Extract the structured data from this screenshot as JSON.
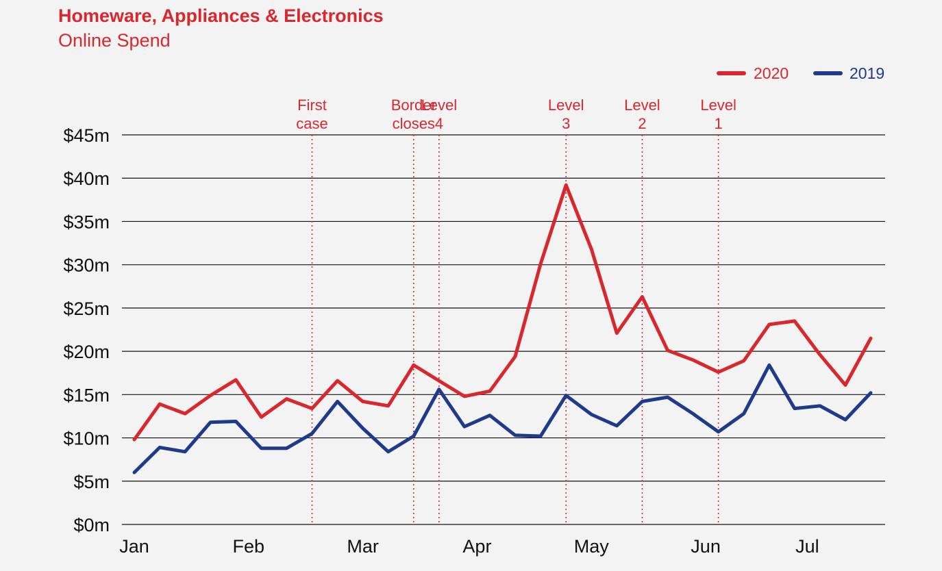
{
  "chart_data": {
    "type": "line",
    "title": "Homeware, Appliances & Electronics",
    "subtitle": "Online Spend",
    "ylim": [
      0,
      45
    ],
    "yticks": [
      0,
      5,
      10,
      15,
      20,
      25,
      30,
      35,
      40,
      45
    ],
    "ytick_labels": [
      "$0m",
      "$5m",
      "$10m",
      "$15m",
      "$20m",
      "$25m",
      "$30m",
      "$35m",
      "$40m",
      "$45m"
    ],
    "month_labels": [
      "Jan",
      "Feb",
      "Mar",
      "Apr",
      "May",
      "Jun",
      "Jul"
    ],
    "grid": true,
    "legend_position": "top-right",
    "series": [
      {
        "name": "2020",
        "color": "#d9272e",
        "values": [
          9.8,
          13.9,
          12.8,
          14.9,
          16.7,
          12.4,
          14.5,
          13.4,
          16.6,
          14.2,
          13.7,
          18.4,
          16.6,
          14.8,
          15.4,
          19.4,
          30.1,
          39.2,
          31.8,
          22.1,
          26.3,
          20.1,
          19.0,
          17.6,
          18.9,
          23.1,
          23.5,
          19.6,
          16.1,
          21.5
        ]
      },
      {
        "name": "2019",
        "color": "#1f3a8a",
        "values": [
          6.0,
          8.9,
          8.4,
          11.8,
          11.9,
          8.8,
          8.8,
          10.5,
          14.2,
          11.1,
          8.4,
          10.2,
          15.6,
          11.3,
          12.6,
          10.3,
          10.2,
          14.9,
          12.7,
          11.4,
          14.2,
          14.7,
          12.8,
          10.7,
          12.8,
          18.4,
          13.4,
          13.7,
          12.1,
          15.2
        ]
      }
    ],
    "events": [
      {
        "index": 7,
        "label_line1": "First",
        "label_line2": "case"
      },
      {
        "index": 11,
        "label_line1": "Border",
        "label_line2": "closes"
      },
      {
        "index": 12,
        "label_line1": "Level",
        "label_line2": "4"
      },
      {
        "index": 17,
        "label_line1": "Level",
        "label_line2": "3"
      },
      {
        "index": 20,
        "label_line1": "Level",
        "label_line2": "2"
      },
      {
        "index": 23,
        "label_line1": "Level",
        "label_line2": "1"
      }
    ]
  }
}
